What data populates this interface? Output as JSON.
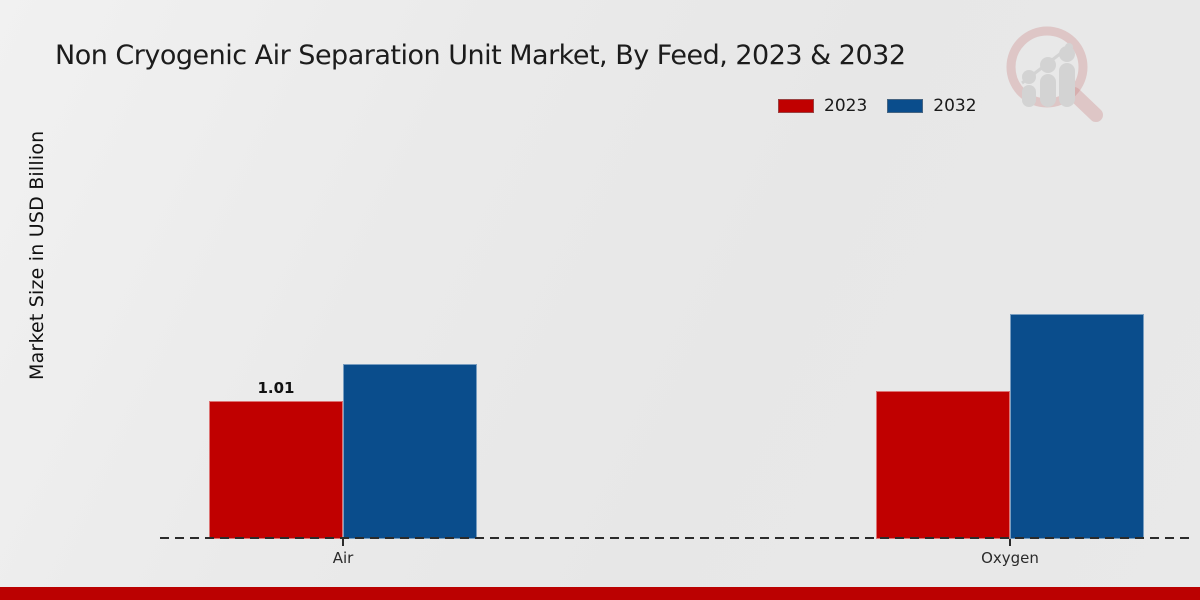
{
  "title": "Non Cryogenic Air Separation Unit Market, By Feed, 2023 & 2032",
  "y_axis_label": "Market Size in USD Billion",
  "legend": {
    "position": "top-right",
    "items": [
      {
        "label": "2023",
        "color": "#c00000"
      },
      {
        "label": "2032",
        "color": "#0a4d8c"
      }
    ]
  },
  "icons": {
    "watermark": "magnifier-bar-chart-icon"
  },
  "colors": {
    "series_2023": "#c00000",
    "series_2032": "#0a4d8c",
    "footer_bar": "#bb0101",
    "axis": "#2b2b2b",
    "background": "#eaeaea"
  },
  "chart_data": {
    "type": "bar",
    "title": "Non Cryogenic Air Separation Unit Market, By Feed, 2023 & 2032",
    "xlabel": "",
    "ylabel": "Market Size in USD Billion",
    "categories": [
      "Air",
      "Oxygen"
    ],
    "series": [
      {
        "name": "2023",
        "color": "#c00000",
        "values": [
          1.01,
          1.08
        ],
        "data_labels": [
          "1.01",
          ""
        ]
      },
      {
        "name": "2032",
        "color": "#0a4d8c",
        "values": [
          1.28,
          1.65
        ],
        "data_labels": [
          "",
          ""
        ]
      }
    ],
    "ylim": [
      0,
      2.9
    ],
    "grid": false,
    "y_ticks_visible": false,
    "baseline_style": "dashed",
    "legend_position": "top-right"
  }
}
